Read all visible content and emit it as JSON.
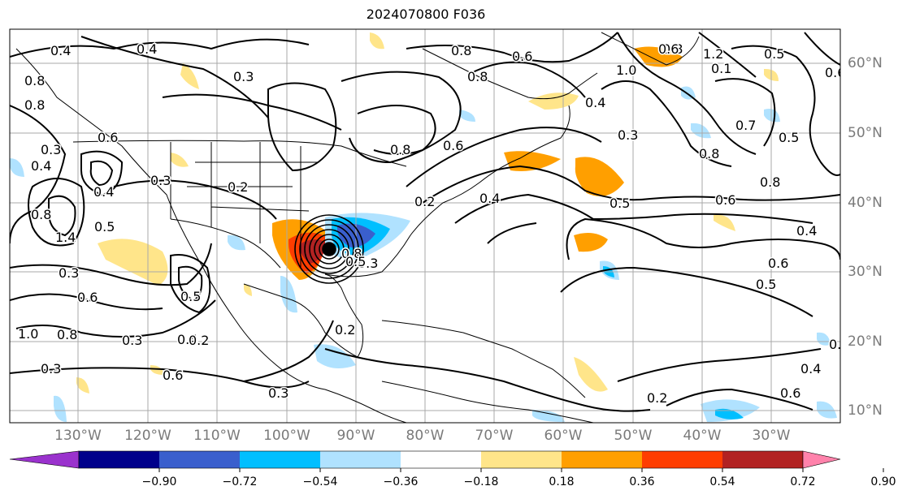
{
  "title": "2024070800 F036",
  "map": {
    "lon_labels": [
      "130°W",
      "120°W",
      "110°W",
      "100°W",
      "90°W",
      "80°W",
      "70°W",
      "60°W",
      "50°W",
      "40°W",
      "30°W"
    ],
    "lat_labels": [
      "60°N",
      "50°N",
      "40°N",
      "30°N",
      "20°N",
      "10°N"
    ],
    "contour_labels": [
      "0.4",
      "0.4",
      "0.3",
      "0.8",
      "0.3",
      "0.6",
      "0.4",
      "0.4",
      "0.8",
      "1.4",
      "0.5",
      "0.3",
      "0.6",
      "0.3",
      "1.0",
      "0.8",
      "0.5",
      "0.4",
      "0.6",
      "0.3",
      "0.2",
      "0.2",
      "0.3",
      "0.8",
      "0.8",
      "0.6",
      "0.3",
      "0.6",
      "0.8",
      "0.2",
      "0.4",
      "0.5",
      "1.0",
      "0.8",
      "0.4",
      "0.3",
      "0.5",
      "0.8",
      "1.2",
      "0.6",
      "0.7",
      "0.8",
      "0.6",
      "0.4",
      "0.5",
      "0.6",
      "0.5",
      "0.6",
      "0.8",
      "0.1",
      "0.6",
      "0.2",
      "0.4",
      "0.8",
      "0.5",
      "0.2",
      "0.3",
      "0.2"
    ]
  },
  "colorbar": {
    "ticks": [
      "−0.90",
      "−0.72",
      "−0.54",
      "−0.36",
      "−0.18",
      "0.18",
      "0.36",
      "0.54",
      "0.72",
      "0.90"
    ],
    "colors": [
      "#9a32cd",
      "#00008b",
      "#3a5fcd",
      "#00bfff",
      "#b0e2ff",
      "#ffffff",
      "#ffe58a",
      "#ff9f00",
      "#ff3d00",
      "#b22222",
      "#ff82ab"
    ]
  },
  "colors": {
    "positive_light": "#ffe58a",
    "positive_mid": "#ff9f00",
    "positive_strong": "#ff3d00",
    "positive_max": "#b22222",
    "negative_light": "#b0e2ff",
    "negative_mid": "#00bfff",
    "negative_strong": "#3a5fcd",
    "grid": "#a9a9a9",
    "axis_label": "#7a7a7a"
  }
}
